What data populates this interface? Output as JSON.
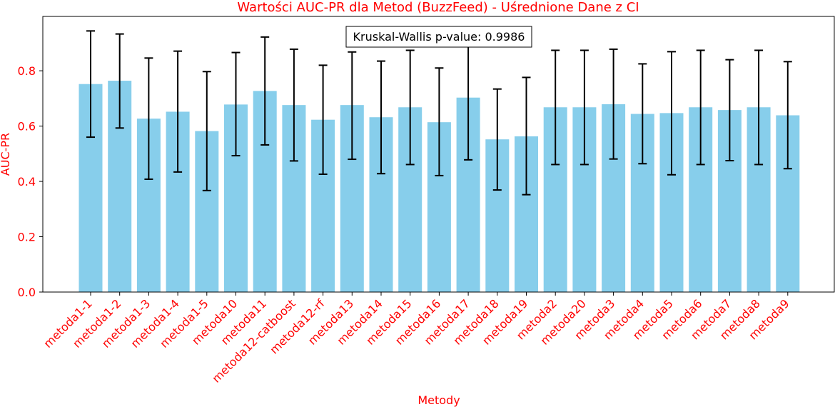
{
  "chart_data": {
    "type": "bar",
    "title": "Wartości AUC-PR dla Metod (BuzzFeed) - Uśrednione Dane z CI",
    "xlabel": "Metody",
    "ylabel": "AUC-PR",
    "ylim": [
      0,
      0.9965
    ],
    "yticks": [
      "0.0",
      "0.2",
      "0.4",
      "0.6",
      "0.8"
    ],
    "ytick_values": [
      0,
      0.2,
      0.4,
      0.6,
      0.8
    ],
    "annotation": "Kruskal-Wallis p-value: 0.9986",
    "categories": [
      "metoda1-1",
      "metoda1-2",
      "metoda1-3",
      "metoda1-4",
      "metoda1-5",
      "metoda10",
      "metoda11",
      "metoda12-catboost",
      "metoda12-rf",
      "metoda13",
      "metoda14",
      "metoda15",
      "metoda16",
      "metoda17",
      "metoda18",
      "metoda19",
      "metoda2",
      "metoda20",
      "metoda3",
      "metoda4",
      "metoda5",
      "metoda6",
      "metoda7",
      "metoda8",
      "metoda9"
    ],
    "values": [
      0.752,
      0.764,
      0.627,
      0.652,
      0.582,
      0.678,
      0.727,
      0.676,
      0.623,
      0.676,
      0.632,
      0.668,
      0.614,
      0.703,
      0.552,
      0.563,
      0.668,
      0.668,
      0.679,
      0.644,
      0.647,
      0.668,
      0.658,
      0.668,
      0.639
    ],
    "ci_low": [
      0.56,
      0.593,
      0.408,
      0.434,
      0.367,
      0.493,
      0.532,
      0.474,
      0.426,
      0.48,
      0.428,
      0.461,
      0.421,
      0.478,
      0.369,
      0.352,
      0.461,
      0.461,
      0.481,
      0.464,
      0.424,
      0.461,
      0.475,
      0.461,
      0.446
    ],
    "ci_high": [
      0.944,
      0.933,
      0.846,
      0.871,
      0.797,
      0.866,
      0.922,
      0.878,
      0.82,
      0.868,
      0.835,
      0.874,
      0.81,
      0.918,
      0.734,
      0.776,
      0.874,
      0.874,
      0.878,
      0.825,
      0.869,
      0.874,
      0.84,
      0.874,
      0.833
    ],
    "grid": false,
    "colors": {
      "bar": "#87ceeb",
      "error": "#000000",
      "text_accent": "#ff0000",
      "axis": "#000000"
    }
  }
}
